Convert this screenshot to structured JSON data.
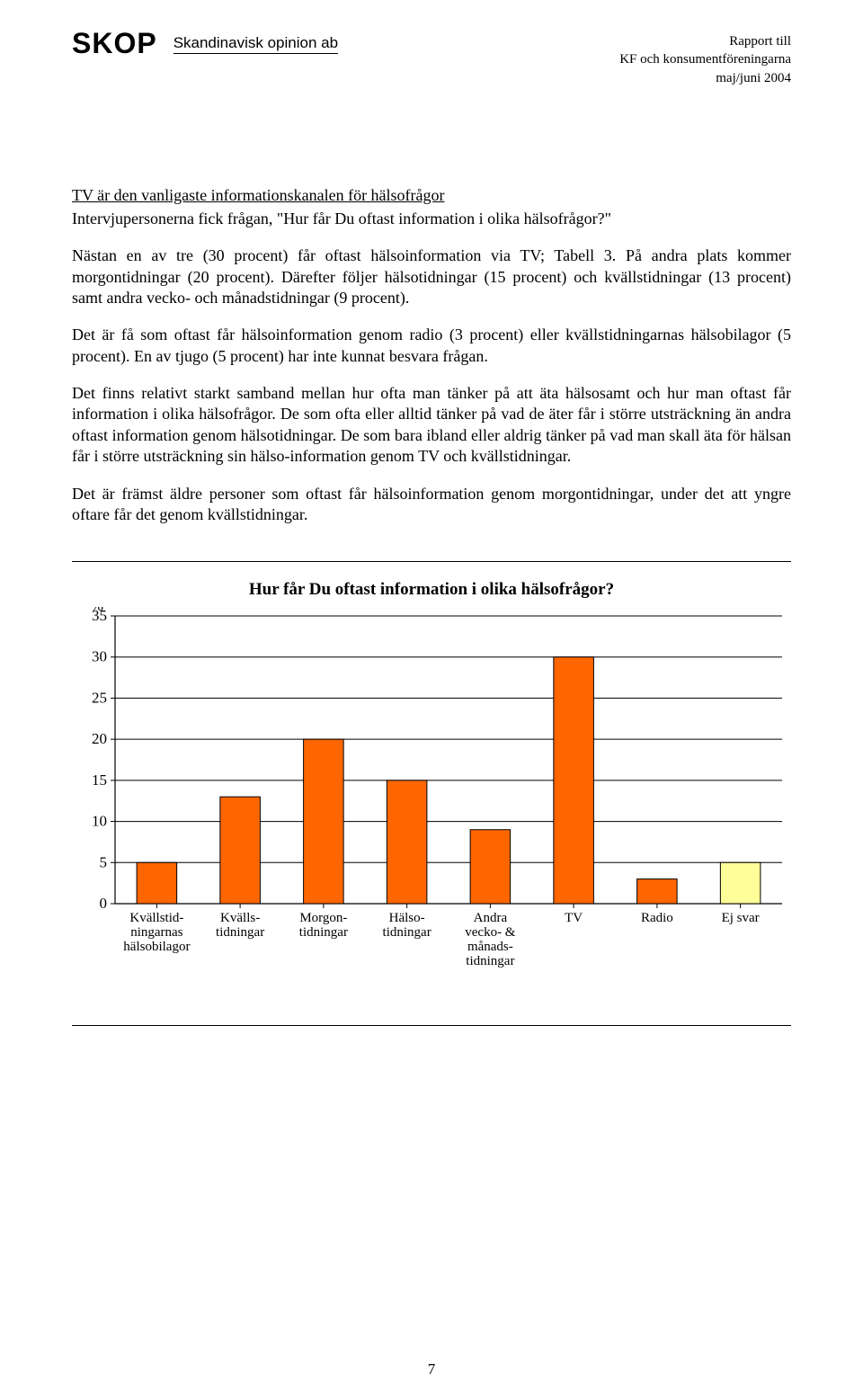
{
  "header": {
    "logo": "SKOP",
    "company": "Skandinavisk opinion ab",
    "report_to_1": "Rapport till",
    "report_to_2": "KF och konsumentföreningarna",
    "report_to_3": "maj/juni 2004"
  },
  "section_title": "TV är den vanligaste informationskanalen för hälsofrågor",
  "p1": "Intervjupersonerna fick frågan, \"Hur får Du oftast information i olika hälsofrågor?\"",
  "p2": "Nästan en av tre (30 procent) får oftast hälsoinformation via TV; Tabell 3. På andra plats kommer morgontidningar (20 procent). Därefter följer hälsotidningar (15 procent) och kvällstidningar (13 procent) samt andra vecko- och månadstidningar (9 procent).",
  "p3": "Det är få som oftast får hälsoinformation genom radio (3 procent) eller kvällstidningarnas hälsobilagor (5 procent). En av tjugo (5 procent) har inte kunnat besvara frågan.",
  "p4": "Det finns relativt starkt samband mellan hur ofta man tänker på att äta hälsosamt och hur man oftast får information i olika hälsofrågor. De som ofta eller alltid tänker på vad de äter får i större utsträckning än andra oftast information genom hälsotidningar. De som bara ibland eller aldrig tänker på vad man skall äta för hälsan får i större utsträckning sin hälso-information genom TV och kvällstidningar.",
  "p5": "Det är främst äldre personer som oftast får hälsoinformation genom morgontidningar, under det att yngre oftare får det genom kvällstidningar.",
  "chart": {
    "title": "Hur får Du oftast information i olika hälsofrågor?",
    "type": "bar",
    "y_unit": "%",
    "ylim": [
      0,
      35
    ],
    "ytick_step": 5,
    "bar_fill": "#ff6600",
    "bar_fill_alt": "#ffff99",
    "bar_border": "#000000",
    "gridline_color": "#000000",
    "axis_color": "#000000",
    "background_color": "#ffffff",
    "bar_width_ratio": 0.48,
    "label_fontsize": 15,
    "axis_fontsize": 17,
    "title_fontsize": 19,
    "categories": [
      {
        "lines": [
          "Kvällstid-",
          "ningarnas",
          "hälsobilagor"
        ],
        "value": 5,
        "color": "#ff6600"
      },
      {
        "lines": [
          "Kvälls-",
          "tidningar"
        ],
        "value": 13,
        "color": "#ff6600"
      },
      {
        "lines": [
          "Morgon-",
          "tidningar"
        ],
        "value": 20,
        "color": "#ff6600"
      },
      {
        "lines": [
          "Hälso-",
          "tidningar"
        ],
        "value": 15,
        "color": "#ff6600"
      },
      {
        "lines": [
          "Andra",
          "vecko- &",
          "månads-",
          "tidningar"
        ],
        "value": 9,
        "color": "#ff6600"
      },
      {
        "lines": [
          "TV"
        ],
        "value": 30,
        "color": "#ff6600"
      },
      {
        "lines": [
          "Radio"
        ],
        "value": 3,
        "color": "#ff6600"
      },
      {
        "lines": [
          "Ej svar"
        ],
        "value": 5,
        "color": "#ffff99"
      }
    ]
  },
  "page_number": "7"
}
